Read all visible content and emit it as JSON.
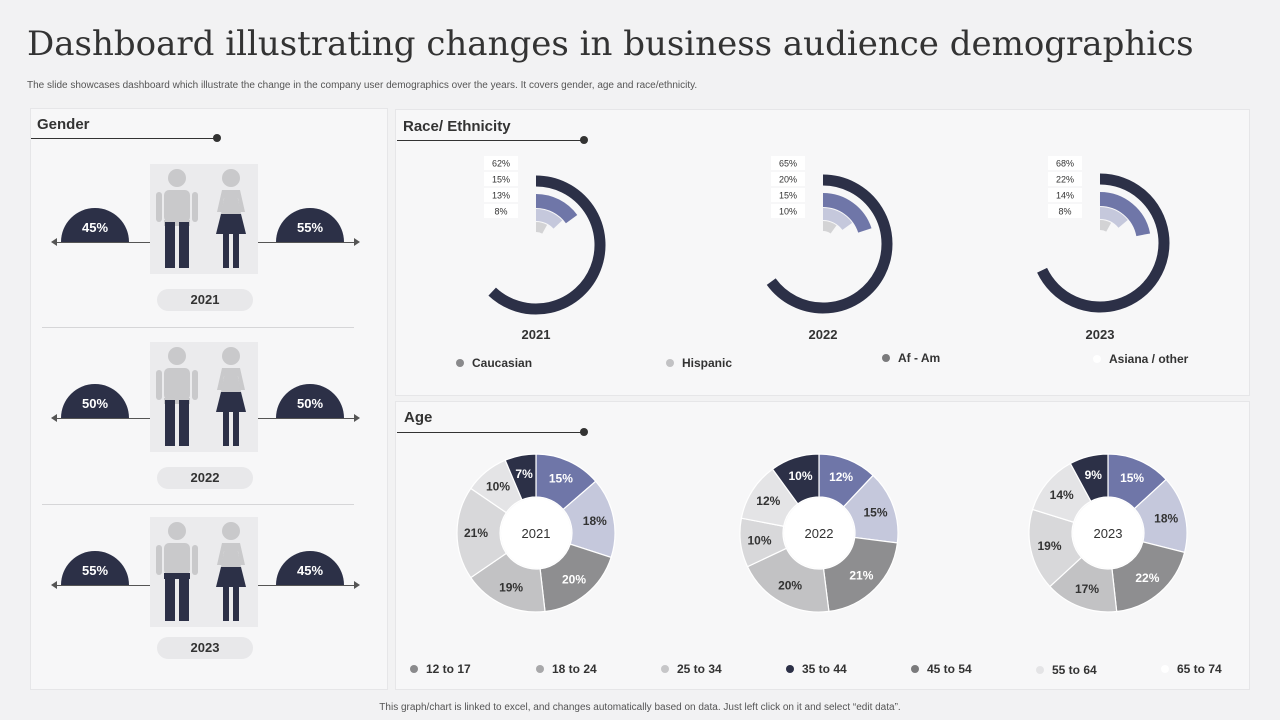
{
  "title": "Dashboard illustrating changes in business audience demographics",
  "subtitle": "The slide showcases dashboard which illustrate the change in the company user demographics over the years. It covers gender, age and race/ethnicity.",
  "footer": "This graph/chart is linked to excel, and changes automatically based on data. Just left click on it and select “edit data”.",
  "colors": {
    "dark": "#2c3047",
    "blue": "#6f76a8",
    "lavender": "#c5c8dc",
    "light": "#dcdcde",
    "panel": "#f7f7f8"
  },
  "gender": {
    "title": "Gender",
    "rows": [
      {
        "year": "2021",
        "male": "45%",
        "female": "55%"
      },
      {
        "year": "2022",
        "male": "50%",
        "female": "50%"
      },
      {
        "year": "2023",
        "male": "55%",
        "female": "45%"
      }
    ]
  },
  "race": {
    "title": "Race/ Ethnicity",
    "legend": [
      "Caucasian",
      "Hispanic",
      "Af - Am",
      "Asiana / other"
    ]
  },
  "age": {
    "title": "Age",
    "legend": [
      "12 to 17",
      "18 to 24",
      "25 to 34",
      "35 to 44",
      "45 to 54",
      "55 to 64",
      "65 to 74"
    ]
  },
  "chart_data": [
    {
      "type": "bar",
      "name": "gender",
      "categories": [
        "2021",
        "2022",
        "2023"
      ],
      "series": [
        {
          "values": [
            45,
            50,
            55
          ]
        },
        {
          "values": [
            55,
            50,
            45
          ]
        }
      ]
    },
    {
      "type": "radial-bar",
      "name": "race",
      "categories": [
        "2021",
        "2022",
        "2023"
      ],
      "series": [
        {
          "name": "Caucasian",
          "values": [
            62,
            65,
            68
          ]
        },
        {
          "name": "Hispanic",
          "values": [
            15,
            20,
            22
          ]
        },
        {
          "name": "Af - Am",
          "values": [
            13,
            15,
            14
          ]
        },
        {
          "name": "Asiana / other",
          "values": [
            8,
            10,
            8
          ]
        }
      ],
      "labels": [
        [
          "62%",
          "15%",
          "13%",
          "8%"
        ],
        [
          "65%",
          "20%",
          "15%",
          "10%"
        ],
        [
          "68%",
          "22%",
          "14%",
          "8%"
        ]
      ]
    },
    {
      "type": "pie",
      "name": "age",
      "charts": [
        {
          "year": "2021",
          "values": [
            15,
            18,
            20,
            19,
            21,
            10,
            7
          ],
          "labels": [
            "15%",
            "18%",
            "20%",
            "19%",
            "21%",
            "10%",
            "7%"
          ]
        },
        {
          "year": "2022",
          "values": [
            12,
            15,
            21,
            20,
            10,
            12,
            10
          ],
          "labels": [
            "12%",
            "15%",
            "21%",
            "20%",
            "10%",
            "12%",
            "10%"
          ]
        },
        {
          "year": "2023",
          "values": [
            15,
            18,
            22,
            17,
            19,
            14,
            9
          ],
          "labels": [
            "15%",
            "18%",
            "22%",
            "17%",
            "19%",
            "14%",
            "9%"
          ]
        }
      ]
    }
  ]
}
